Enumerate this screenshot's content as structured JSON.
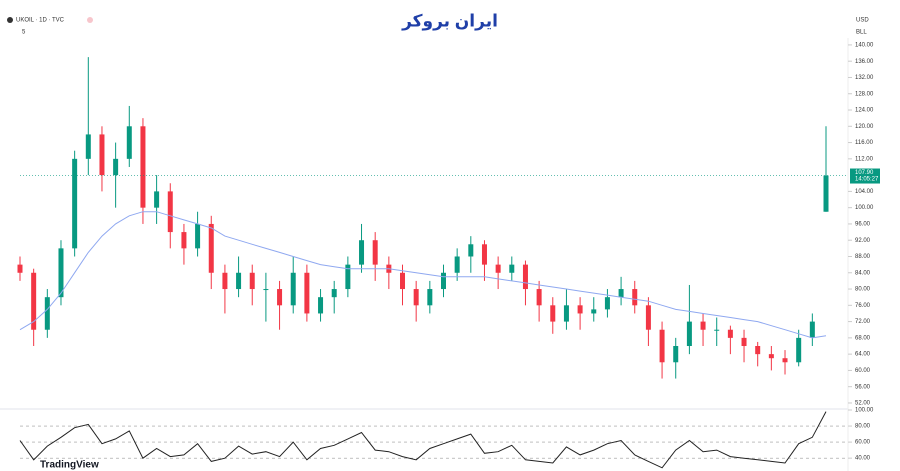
{
  "chart_data": {
    "type": "candlestick",
    "title": "UKOIL · 1D · TVC",
    "indicator": "5",
    "brand": "ایران بروکر",
    "currency": "USD",
    "unit": "BLL",
    "watermark": "TradingView",
    "up_color": "#089981",
    "down_color": "#f23645",
    "ma_color": "#8fa8f0",
    "rsi_color": "#222222",
    "ylim": [
      51.5,
      141.7
    ],
    "yticks": [
      {
        "value": 140,
        "label": "140.00"
      },
      {
        "value": 136,
        "label": "136.00"
      },
      {
        "value": 132,
        "label": "132.00"
      },
      {
        "value": 128,
        "label": "128.00"
      },
      {
        "value": 124,
        "label": "124.00"
      },
      {
        "value": 120,
        "label": "120.00"
      },
      {
        "value": 116,
        "label": "116.00"
      },
      {
        "value": 112,
        "label": "112.00"
      },
      {
        "value": 104,
        "label": "104.00"
      },
      {
        "value": 100,
        "label": "100.00"
      },
      {
        "value": 96,
        "label": "96.00"
      },
      {
        "value": 92,
        "label": "92.00"
      },
      {
        "value": 88,
        "label": "88.00"
      },
      {
        "value": 84,
        "label": "84.00"
      },
      {
        "value": 80,
        "label": "80.00"
      },
      {
        "value": 76,
        "label": "76.00"
      },
      {
        "value": 72,
        "label": "72.00"
      },
      {
        "value": 68,
        "label": "68.00"
      },
      {
        "value": 64,
        "label": "64.00"
      },
      {
        "value": 60,
        "label": "60.00"
      },
      {
        "value": 56,
        "label": "56.00"
      },
      {
        "value": 52,
        "label": "52.00"
      }
    ],
    "last_price": {
      "value": 107.9,
      "label": "107.90"
    },
    "countdown": "14:05:27",
    "candles": [
      [
        86,
        88,
        82,
        84
      ],
      [
        84,
        85,
        66,
        70
      ],
      [
        70,
        80,
        68,
        78
      ],
      [
        78,
        92,
        76,
        90
      ],
      [
        90,
        114,
        88,
        112
      ],
      [
        112,
        137,
        108,
        118
      ],
      [
        118,
        120,
        104,
        108
      ],
      [
        108,
        116,
        100,
        112
      ],
      [
        112,
        125,
        110,
        120
      ],
      [
        120,
        122,
        96,
        100
      ],
      [
        100,
        108,
        96,
        104
      ],
      [
        104,
        106,
        90,
        94
      ],
      [
        94,
        96,
        86,
        90
      ],
      [
        90,
        99,
        88,
        96
      ],
      [
        96,
        98,
        80,
        84
      ],
      [
        84,
        86,
        74,
        80
      ],
      [
        80,
        88,
        78,
        84
      ],
      [
        84,
        86,
        76,
        80
      ],
      [
        80,
        84,
        72,
        80
      ],
      [
        80,
        82,
        70,
        76
      ],
      [
        76,
        88,
        74,
        84
      ],
      [
        84,
        86,
        72,
        74
      ],
      [
        74,
        80,
        72,
        78
      ],
      [
        78,
        82,
        74,
        80
      ],
      [
        80,
        88,
        78,
        86
      ],
      [
        86,
        96,
        84,
        92
      ],
      [
        92,
        94,
        82,
        86
      ],
      [
        86,
        88,
        80,
        84
      ],
      [
        84,
        86,
        76,
        80
      ],
      [
        80,
        82,
        72,
        76
      ],
      [
        76,
        82,
        74,
        80
      ],
      [
        80,
        86,
        78,
        84
      ],
      [
        84,
        90,
        82,
        88
      ],
      [
        88,
        93,
        84,
        91
      ],
      [
        91,
        92,
        82,
        86
      ],
      [
        86,
        88,
        80,
        84
      ],
      [
        84,
        88,
        82,
        86
      ],
      [
        86,
        87,
        76,
        80
      ],
      [
        80,
        82,
        72,
        76
      ],
      [
        76,
        78,
        69,
        72
      ],
      [
        72,
        80,
        70,
        76
      ],
      [
        76,
        78,
        70,
        74
      ],
      [
        74,
        78,
        72,
        75
      ],
      [
        75,
        80,
        73,
        78
      ],
      [
        78,
        83,
        76,
        80
      ],
      [
        80,
        82,
        74,
        76
      ],
      [
        76,
        78,
        66,
        70
      ],
      [
        70,
        72,
        58,
        62
      ],
      [
        62,
        68,
        58,
        66
      ],
      [
        66,
        81,
        64,
        72
      ],
      [
        72,
        74,
        66,
        70
      ],
      [
        70,
        73,
        66,
        70
      ],
      [
        70,
        71,
        64,
        68
      ],
      [
        68,
        70,
        62,
        66
      ],
      [
        66,
        67,
        61,
        64
      ],
      [
        64,
        66,
        60,
        63
      ],
      [
        63,
        65,
        59,
        62
      ],
      [
        62,
        70,
        61,
        68
      ],
      [
        68,
        74,
        66,
        72
      ],
      [
        99,
        120,
        99,
        107.9
      ]
    ],
    "ma": [
      70,
      72,
      75,
      79,
      84,
      89,
      93,
      96,
      98,
      99,
      99,
      98,
      97,
      96,
      95,
      93,
      92,
      91,
      90,
      89,
      88,
      87,
      86,
      85.5,
      85,
      85,
      85,
      85,
      84.5,
      84,
      83.5,
      83,
      83,
      83,
      83,
      82.5,
      82,
      81.5,
      81,
      80.5,
      80,
      79.5,
      79,
      78.5,
      78,
      77.5,
      77,
      76,
      75,
      74.5,
      74,
      73.5,
      73,
      72.5,
      72,
      71,
      70,
      69,
      68,
      68.5
    ],
    "rsi_ylim": [
      24,
      100
    ],
    "rsi_ticks": [
      {
        "value": 100,
        "label": "100.00"
      },
      {
        "value": 80,
        "label": "80.00"
      },
      {
        "value": 60,
        "label": "60.00"
      },
      {
        "value": 40,
        "label": "40.00"
      }
    ],
    "rsi": [
      62,
      38,
      55,
      66,
      78,
      82,
      58,
      64,
      74,
      40,
      52,
      42,
      44,
      58,
      36,
      40,
      55,
      45,
      48,
      42,
      60,
      38,
      52,
      56,
      64,
      72,
      50,
      48,
      42,
      38,
      52,
      58,
      64,
      70,
      46,
      48,
      56,
      38,
      36,
      34,
      54,
      44,
      50,
      58,
      62,
      44,
      36,
      28,
      50,
      62,
      48,
      50,
      42,
      40,
      38,
      36,
      34,
      58,
      66,
      98
    ]
  }
}
